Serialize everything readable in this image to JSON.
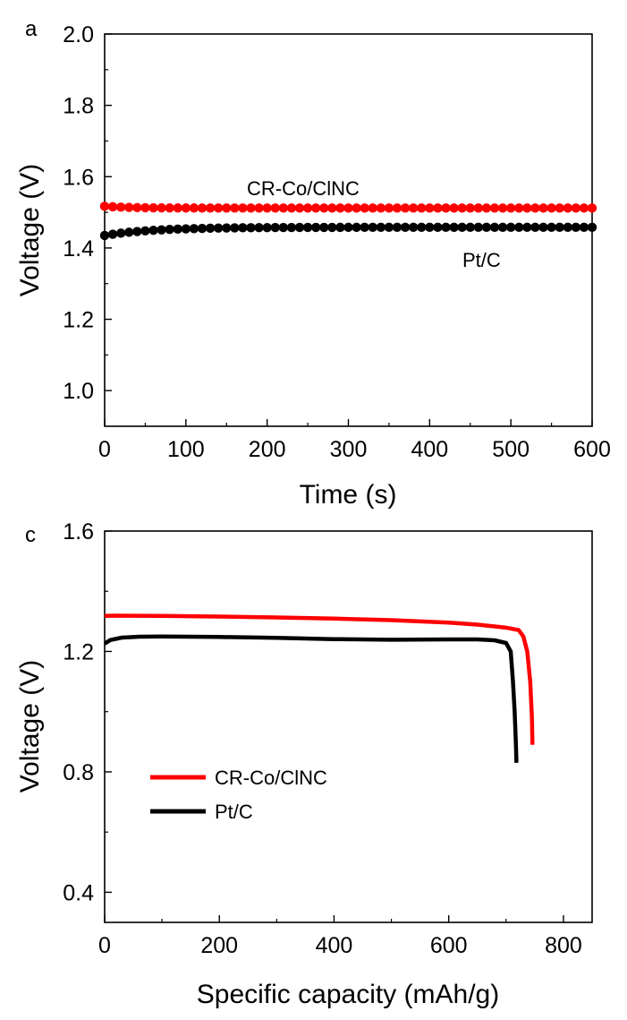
{
  "chart_data": [
    {
      "type": "scatter",
      "panel_label": "a",
      "xlabel": "Time (s)",
      "ylabel": "Voltage (V)",
      "xlim": [
        0,
        600
      ],
      "ylim": [
        0.9,
        2.0
      ],
      "xticks": [
        0,
        100,
        200,
        300,
        400,
        500,
        600
      ],
      "yticks": [
        1.0,
        1.2,
        1.4,
        1.6,
        1.8,
        2.0
      ],
      "xtick_labels": [
        "0",
        "100",
        "200",
        "300",
        "400",
        "500",
        "600"
      ],
      "ytick_labels": [
        "1.0",
        "1.2",
        "1.4",
        "1.6",
        "1.8",
        "2.0"
      ],
      "marker_interval": 10,
      "series": [
        {
          "name": "CR-Co/ClNC",
          "color": "#ff0000",
          "label": "CR-Co/ClNC",
          "start": 1.517,
          "plateau": 1.512,
          "tau": 30
        },
        {
          "name": "Pt/C",
          "color": "#000000",
          "label": "Pt/C",
          "start": 1.435,
          "plateau": 1.458,
          "tau": 60
        }
      ]
    },
    {
      "type": "line",
      "panel_label": "c",
      "xlabel": "Specific capacity (mAh/g)",
      "ylabel": "Voltage (V)",
      "xlim": [
        0,
        850
      ],
      "ylim": [
        0.3,
        1.6
      ],
      "xticks": [
        0,
        200,
        400,
        600,
        800
      ],
      "yticks": [
        0.4,
        0.8,
        1.2,
        1.6
      ],
      "xtick_labels": [
        "0",
        "200",
        "400",
        "600",
        "800"
      ],
      "ytick_labels": [
        "0.4",
        "0.8",
        "1.2",
        "1.6"
      ],
      "legend_position": "lower-left",
      "series": [
        {
          "name": "CR-Co/ClNC",
          "color": "#ff0000",
          "x": [
            0,
            20,
            100,
            200,
            300,
            400,
            500,
            600,
            650,
            700,
            722,
            730,
            737,
            742,
            745,
            746
          ],
          "y": [
            1.318,
            1.319,
            1.318,
            1.316,
            1.313,
            1.309,
            1.304,
            1.296,
            1.289,
            1.279,
            1.271,
            1.25,
            1.2,
            1.1,
            0.98,
            0.89
          ]
        },
        {
          "name": "Pt/C",
          "color": "#000000",
          "x": [
            0,
            10,
            30,
            60,
            100,
            200,
            300,
            400,
            500,
            600,
            650,
            680,
            700,
            708,
            712,
            715,
            717,
            718
          ],
          "y": [
            1.226,
            1.238,
            1.246,
            1.249,
            1.25,
            1.248,
            1.245,
            1.241,
            1.239,
            1.24,
            1.24,
            1.237,
            1.228,
            1.2,
            1.1,
            1.0,
            0.9,
            0.83
          ]
        }
      ]
    }
  ]
}
